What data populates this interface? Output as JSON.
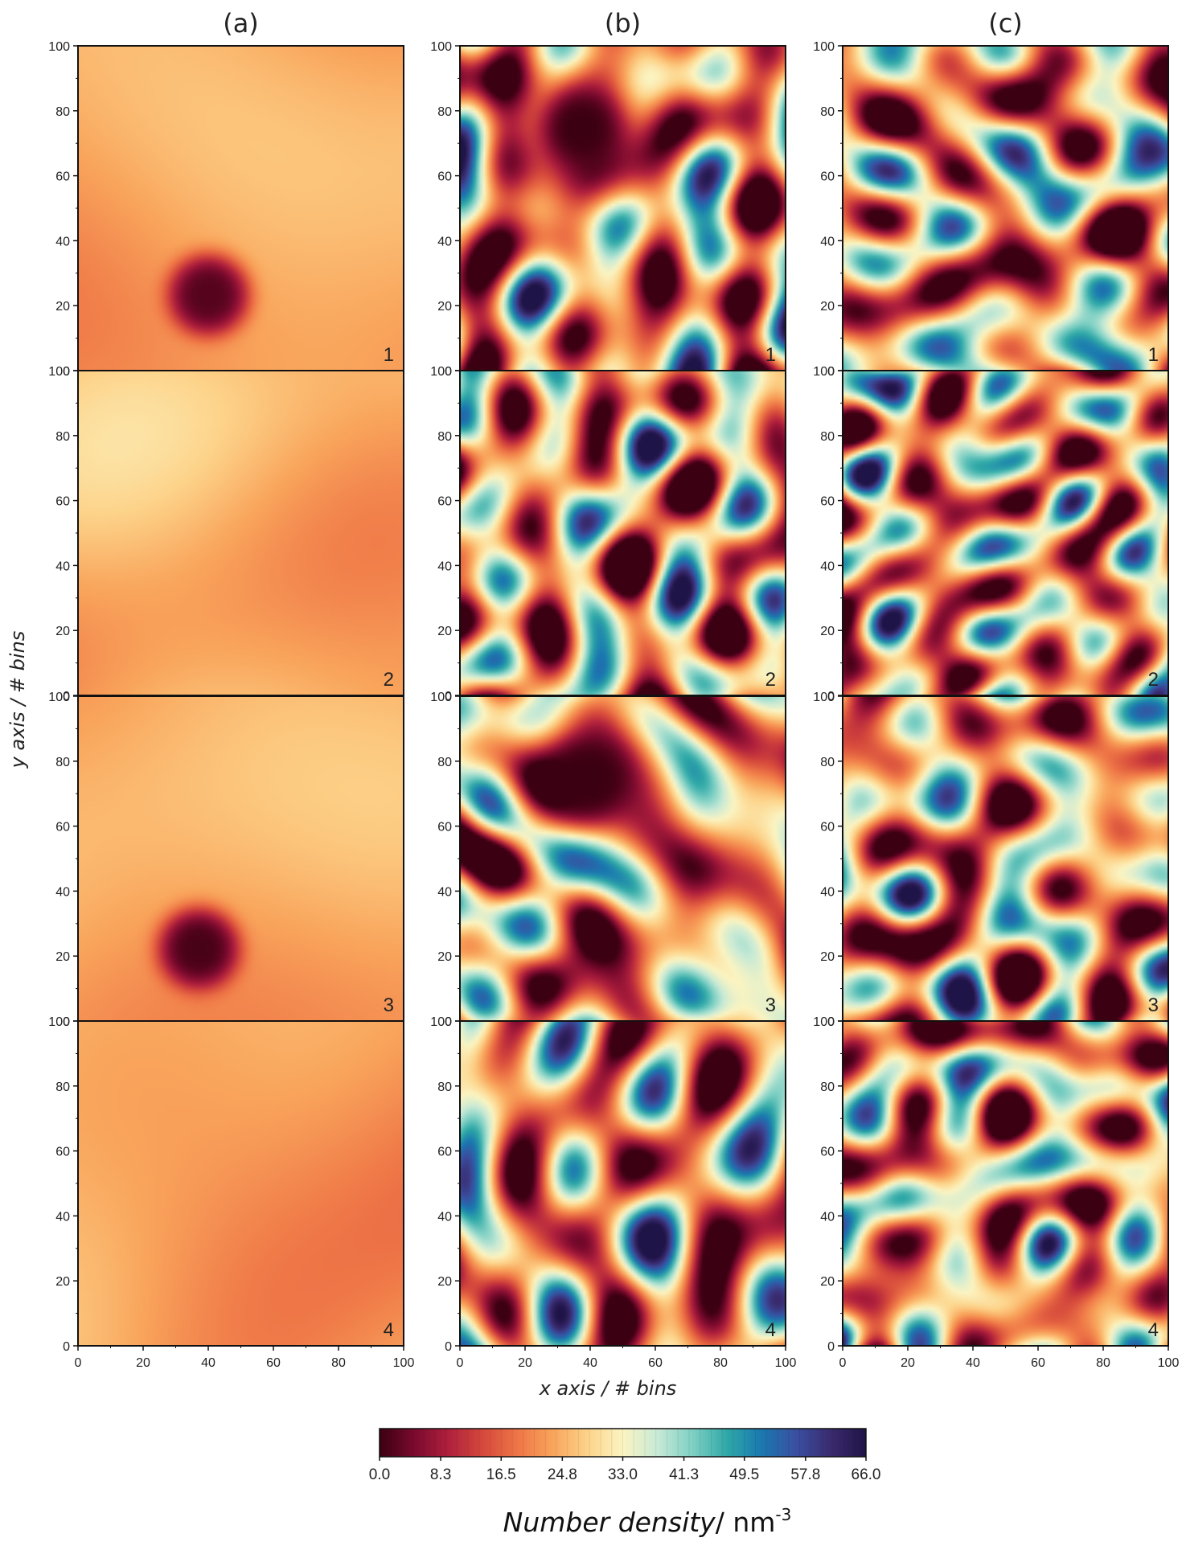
{
  "chart_data": {
    "type": "heatmap",
    "column_titles": [
      "(a)",
      "(b)",
      "(c)"
    ],
    "xlabel": "x axis / # bins",
    "ylabel": "y axis / # bins",
    "xlim": [
      0,
      100
    ],
    "ylim": [
      0,
      100
    ],
    "x_ticks": [
      "0",
      "20",
      "40",
      "60",
      "80",
      "100"
    ],
    "y_ticks": [
      "0",
      "20",
      "40",
      "60",
      "80",
      "100"
    ],
    "panel_numbers": [
      "1",
      "2",
      "3",
      "4"
    ],
    "colorbar": {
      "label_italic": "Number density",
      "label_unit": "/ nm",
      "label_exponent": "-3",
      "range": [
        0.0,
        66.0
      ],
      "ticks": [
        "0.0",
        "8.3",
        "16.5",
        "24.8",
        "33.0",
        "41.3",
        "49.5",
        "57.8",
        "66.0"
      ],
      "colors": [
        "#3b0012",
        "#7a0a2e",
        "#b0203d",
        "#d64a3c",
        "#ef7747",
        "#f9a55c",
        "#fdd38a",
        "#fbf4c2",
        "#c8ead6",
        "#7fd0c4",
        "#2fa8a7",
        "#1a78b0",
        "#3a4fa0",
        "#3a2a6e",
        "#1f1447"
      ]
    },
    "panels": [
      {
        "column": "(a)",
        "row": "1",
        "pattern": "smooth",
        "base_density": 24,
        "hole": {
          "x": 40,
          "y": 23,
          "min_density": 2
        }
      },
      {
        "column": "(a)",
        "row": "2",
        "pattern": "smooth",
        "base_density": 24
      },
      {
        "column": "(a)",
        "row": "3",
        "pattern": "smooth",
        "base_density": 24,
        "hole": {
          "x": 37,
          "y": 22,
          "min_density": 1
        }
      },
      {
        "column": "(a)",
        "row": "4",
        "pattern": "smooth",
        "base_density": 23
      },
      {
        "column": "(b)",
        "row": "1",
        "pattern": "blobs",
        "hole": {
          "x": 37,
          "y": 75,
          "min_density": 0
        }
      },
      {
        "column": "(b)",
        "row": "2",
        "pattern": "blobs"
      },
      {
        "column": "(b)",
        "row": "3",
        "pattern": "blobs",
        "hole": {
          "x": 40,
          "y": 75,
          "min_density": 0
        }
      },
      {
        "column": "(b)",
        "row": "4",
        "pattern": "blobs"
      },
      {
        "column": "(c)",
        "row": "1",
        "pattern": "blobs"
      },
      {
        "column": "(c)",
        "row": "2",
        "pattern": "blobs_fine"
      },
      {
        "column": "(c)",
        "row": "3",
        "pattern": "blobs"
      },
      {
        "column": "(c)",
        "row": "4",
        "pattern": "blobs_fine"
      }
    ]
  }
}
